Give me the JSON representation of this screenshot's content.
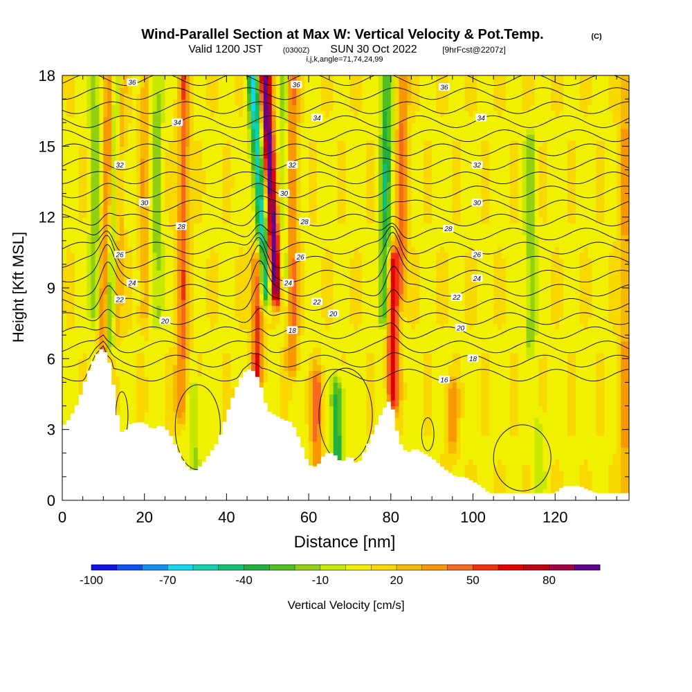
{
  "header": {
    "title": "Wind-Parallel Section at Max W: Vertical Velocity & Pot.Temp.",
    "copyright": "(C)",
    "valid_prefix": "Valid 1200 JST",
    "valid_zulu": "(0300Z)",
    "valid_date": "SUN 30 Oct 2022",
    "forecast": "[9hrFcst@2207z]",
    "indices": "i,j,k,angle=71,74,24,99"
  },
  "colors": {
    "terrain": "#ffffff",
    "contour": "#000000",
    "background": "#ffffff"
  },
  "chart_data": {
    "type": "heatmap",
    "xlabel": "Distance [nm]",
    "ylabel": "Height [Kft MSL]",
    "xlim": [
      0,
      138
    ],
    "ylim": [
      0,
      18
    ],
    "x_ticks": [
      0,
      20,
      40,
      60,
      80,
      100,
      120
    ],
    "y_ticks": [
      0,
      3,
      6,
      9,
      12,
      15,
      18
    ],
    "grid": false,
    "colorbar": {
      "label": "Vertical Velocity [cm/s]",
      "tick_labels": [
        "-100",
        "-70",
        "-40",
        "-10",
        "20",
        "50",
        "80"
      ],
      "tick_values": [
        -100,
        -70,
        -40,
        -10,
        20,
        50,
        80
      ],
      "min": -100,
      "max": 100,
      "colors": [
        "#1010e8",
        "#1050f0",
        "#1090f0",
        "#10d8f0",
        "#10d0b0",
        "#10c070",
        "#20b040",
        "#50c020",
        "#90d010",
        "#c8e800",
        "#f0f000",
        "#f8d800",
        "#f8b800",
        "#f89800",
        "#f86820",
        "#f03010",
        "#e00000",
        "#c00010",
        "#a00040",
        "#600090"
      ]
    },
    "terrain_profile": {
      "distance_nm": [
        0,
        2,
        4,
        6,
        8,
        10,
        12,
        13,
        14,
        15,
        16,
        18,
        20,
        22,
        24,
        26,
        28,
        30,
        32,
        34,
        36,
        38,
        40,
        42,
        44,
        46,
        48,
        50,
        52,
        54,
        56,
        58,
        60,
        62,
        64,
        66,
        68,
        70,
        72,
        74,
        76,
        78,
        80,
        82,
        84,
        86,
        88,
        90,
        92,
        94,
        96,
        98,
        100,
        102,
        104,
        106,
        110,
        115,
        120,
        122,
        126,
        130,
        134,
        138
      ],
      "height_kft": [
        3.1,
        3.5,
        4.2,
        5.3,
        6.1,
        6.5,
        5.6,
        4.2,
        3.0,
        2.8,
        3.2,
        3.3,
        3.3,
        3.0,
        3.2,
        2.9,
        2.2,
        1.5,
        1.2,
        1.5,
        2.0,
        2.5,
        3.6,
        4.6,
        5.4,
        5.6,
        5.1,
        3.8,
        3.6,
        3.4,
        3.3,
        2.5,
        1.5,
        1.4,
        2.0,
        2.0,
        1.6,
        1.9,
        1.5,
        2.2,
        3.0,
        3.8,
        4.3,
        2.5,
        2.0,
        2.2,
        2.0,
        1.8,
        1.5,
        1.2,
        1.0,
        1.0,
        0.8,
        0.6,
        0.3,
        0.3,
        0.3,
        0.3,
        0.3,
        0.6,
        0.6,
        0.3,
        0.3,
        0.3
      ]
    },
    "updrafts_cm_s": [
      {
        "x": 10,
        "zmin": 6.0,
        "zmax": 18,
        "peak": 45,
        "lean": 0.15
      },
      {
        "x": 13,
        "zmin": 7.5,
        "zmax": 18,
        "peak": 30,
        "lean": 0.1
      },
      {
        "x": 29,
        "zmin": 4.0,
        "zmax": 18,
        "peak": 38,
        "lean": 0.05
      },
      {
        "x": 47.5,
        "zmin": 5.5,
        "zmax": 10,
        "peak": 50,
        "lean": 0.0
      },
      {
        "x": 52,
        "zmin": 9.0,
        "zmax": 18,
        "peak": 95,
        "lean": -0.3
      },
      {
        "x": 56,
        "zmin": 6.0,
        "zmax": 18,
        "peak": 35,
        "lean": 0.0
      },
      {
        "x": 80.5,
        "zmin": 4.5,
        "zmax": 10,
        "peak": 60,
        "lean": 0.0
      },
      {
        "x": 82.5,
        "zmin": 9.0,
        "zmax": 18,
        "peak": 35,
        "lean": 0.05
      },
      {
        "x": 62,
        "zmin": 2.0,
        "zmax": 5,
        "peak": 35,
        "lean": 0.0
      },
      {
        "x": 20,
        "zmin": 8.0,
        "zmax": 18,
        "peak": 20,
        "lean": 0.0
      },
      {
        "x": 95,
        "zmin": 2.5,
        "zmax": 4.5,
        "peak": 25,
        "lean": 0.0
      },
      {
        "x": 137,
        "zmin": 0.5,
        "zmax": 18,
        "peak": 25,
        "lean": 0.0
      }
    ],
    "downdrafts_cm_s": [
      {
        "x": 11.5,
        "zmin": 7.0,
        "zmax": 18,
        "peak": -50,
        "lean": 0.15
      },
      {
        "x": 8,
        "zmin": 8.0,
        "zmax": 18,
        "peak": -25,
        "lean": 0.0
      },
      {
        "x": 23,
        "zmin": 8.0,
        "zmax": 18,
        "peak": -25,
        "lean": 0.0
      },
      {
        "x": 49.5,
        "zmin": 9.0,
        "zmax": 18,
        "peak": -70,
        "lean": -0.35
      },
      {
        "x": 54,
        "zmin": 9.0,
        "zmax": 18,
        "peak": -20,
        "lean": 0.0
      },
      {
        "x": 78.5,
        "zmin": 8.0,
        "zmax": 18,
        "peak": -45,
        "lean": 0.05
      },
      {
        "x": 67,
        "zmin": 1.5,
        "zmax": 4.5,
        "peak": -45,
        "lean": 0.0
      },
      {
        "x": 32,
        "zmin": 1.5,
        "zmax": 4.5,
        "peak": -20,
        "lean": 0.0
      },
      {
        "x": 114,
        "zmin": 7.0,
        "zmax": 15,
        "peak": -25,
        "lean": 0.0
      },
      {
        "x": 116,
        "zmin": 1.0,
        "zmax": 3,
        "peak": -15,
        "lean": 0.0
      }
    ],
    "isentropes": {
      "values": [
        16,
        17,
        18,
        19,
        20,
        21,
        22,
        23,
        24,
        25,
        26,
        27,
        28,
        29,
        30,
        31,
        32,
        33,
        34,
        35,
        36,
        37
      ],
      "labeled": [
        {
          "value": "16",
          "x": 93,
          "z": 5.1
        },
        {
          "value": "18",
          "x": 56,
          "z": 7.2
        },
        {
          "value": "18",
          "x": 100,
          "z": 6.0
        },
        {
          "value": "20",
          "x": 25,
          "z": 7.6
        },
        {
          "value": "20",
          "x": 66,
          "z": 7.9
        },
        {
          "value": "20",
          "x": 97,
          "z": 7.3
        },
        {
          "value": "22",
          "x": 14,
          "z": 8.5
        },
        {
          "value": "22",
          "x": 62,
          "z": 8.4
        },
        {
          "value": "22",
          "x": 96,
          "z": 8.6
        },
        {
          "value": "24",
          "x": 17,
          "z": 9.2
        },
        {
          "value": "24",
          "x": 55,
          "z": 9.2
        },
        {
          "value": "24",
          "x": 101,
          "z": 9.4
        },
        {
          "value": "26",
          "x": 14,
          "z": 10.4
        },
        {
          "value": "26",
          "x": 58,
          "z": 10.3
        },
        {
          "value": "26",
          "x": 101,
          "z": 10.4
        },
        {
          "value": "28",
          "x": 29,
          "z": 11.6
        },
        {
          "value": "28",
          "x": 59,
          "z": 11.8
        },
        {
          "value": "28",
          "x": 94,
          "z": 11.5
        },
        {
          "value": "30",
          "x": 20,
          "z": 12.6
        },
        {
          "value": "30",
          "x": 54,
          "z": 13.0
        },
        {
          "value": "30",
          "x": 101,
          "z": 12.6
        },
        {
          "value": "32",
          "x": 14,
          "z": 14.2
        },
        {
          "value": "32",
          "x": 56,
          "z": 14.2
        },
        {
          "value": "32",
          "x": 101,
          "z": 14.2
        },
        {
          "value": "34",
          "x": 28,
          "z": 16.0
        },
        {
          "value": "34",
          "x": 62,
          "z": 16.2
        },
        {
          "value": "34",
          "x": 102,
          "z": 16.2
        },
        {
          "value": "36",
          "x": 17,
          "z": 17.7
        },
        {
          "value": "36",
          "x": 57,
          "z": 17.6
        },
        {
          "value": "36",
          "x": 93,
          "z": 17.5
        }
      ]
    }
  }
}
